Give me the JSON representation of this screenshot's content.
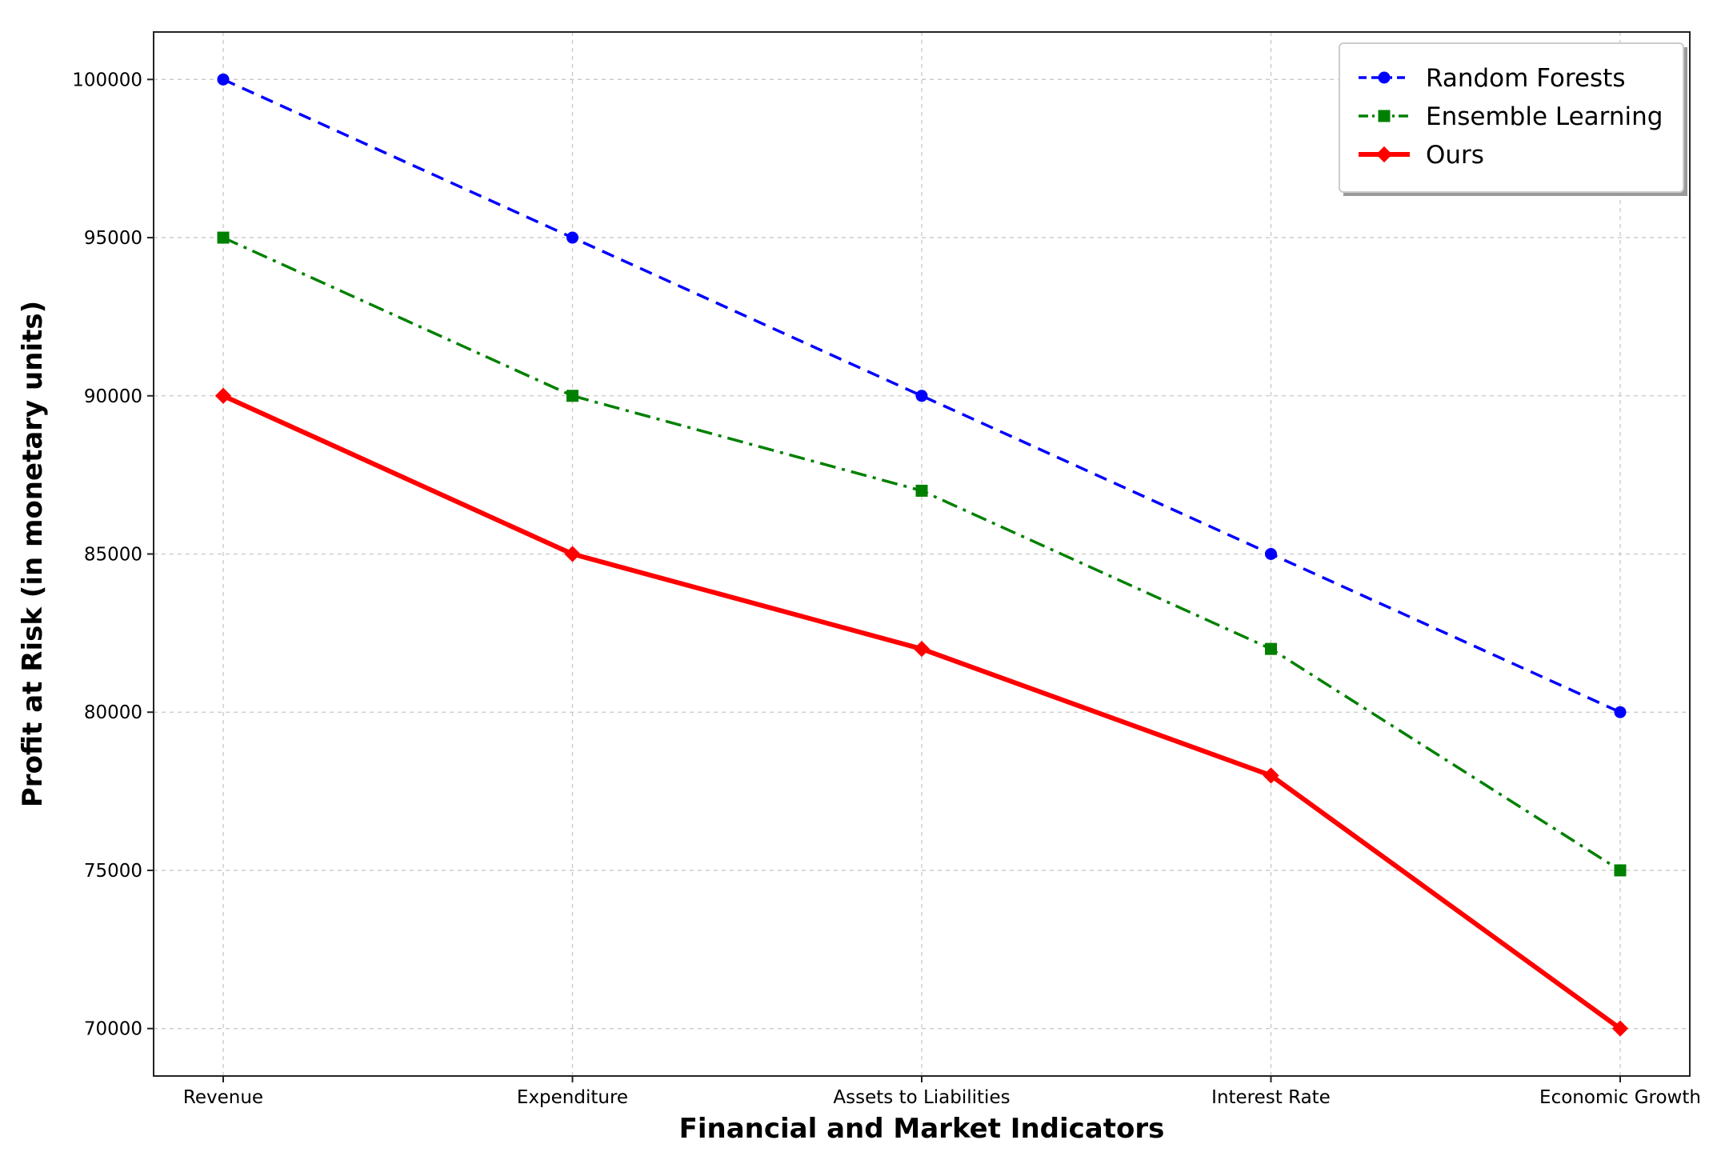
{
  "chart_data": {
    "type": "line",
    "title": "",
    "xlabel": "Financial and Market Indicators",
    "ylabel": "Profit at Risk (in monetary units)",
    "categories": [
      "Revenue",
      "Expenditure",
      "Assets to Liabilities",
      "Interest Rate",
      "Economic Growth"
    ],
    "ylim": [
      68500,
      101500
    ],
    "yticks": [
      70000,
      75000,
      80000,
      85000,
      90000,
      95000,
      100000
    ],
    "grid": true,
    "legend_position": "top-right",
    "series": [
      {
        "name": "Random Forests",
        "values": [
          100000,
          95000,
          90000,
          85000,
          80000
        ],
        "color": "#0000ff",
        "line_style": "dashed",
        "marker": "circle"
      },
      {
        "name": "Ensemble Learning",
        "values": [
          95000,
          90000,
          87000,
          82000,
          75000
        ],
        "color": "#008000",
        "line_style": "dash-dot",
        "marker": "square"
      },
      {
        "name": "Ours",
        "values": [
          90000,
          85000,
          82000,
          78000,
          70000
        ],
        "color": "#ff0000",
        "line_style": "solid",
        "marker": "diamond"
      }
    ]
  }
}
